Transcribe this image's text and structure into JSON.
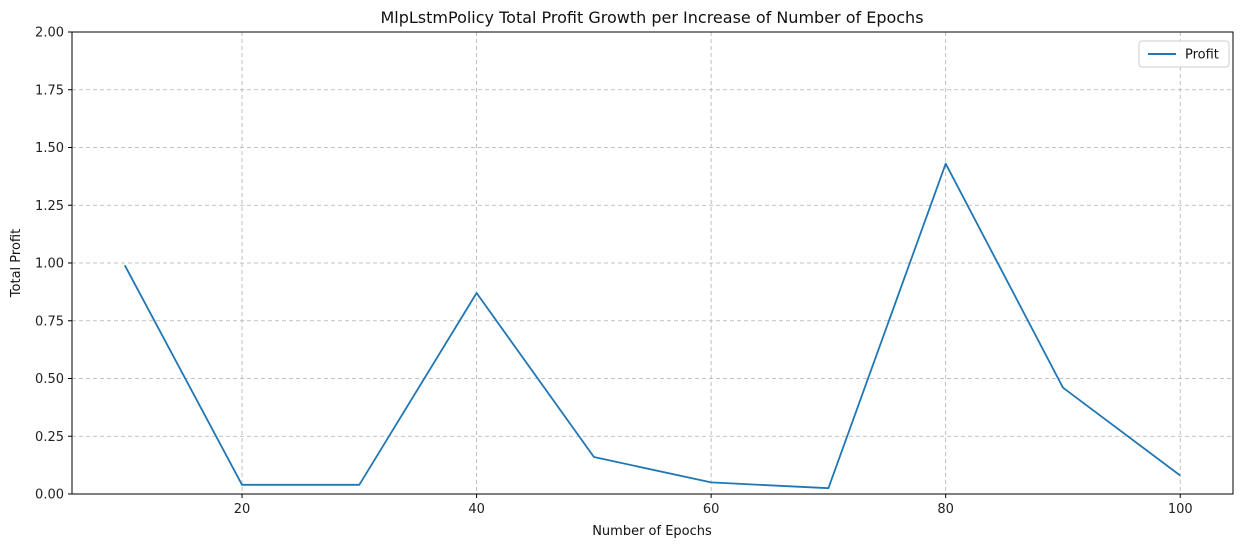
{
  "chart_data": {
    "type": "line",
    "title": "MlpLstmPolicy Total Profit Growth per Increase of Number of Epochs",
    "xlabel": "Number of Epochs",
    "ylabel": "Total Profit",
    "x": [
      10,
      20,
      30,
      40,
      50,
      60,
      70,
      80,
      90,
      100
    ],
    "series": [
      {
        "name": "Profit",
        "color": "#1f77b4",
        "values": [
          0.99,
          0.04,
          0.04,
          0.87,
          0.16,
          0.05,
          0.025,
          1.43,
          0.46,
          0.08
        ]
      }
    ],
    "xlim": [
      5.5,
      104.5
    ],
    "ylim": [
      0,
      2.0
    ],
    "xticks": [
      20,
      40,
      60,
      80,
      100
    ],
    "yticks": [
      0.0,
      0.25,
      0.5,
      0.75,
      1.0,
      1.25,
      1.5,
      1.75,
      2.0
    ],
    "xtick_labels": [
      "20",
      "40",
      "60",
      "80",
      "100"
    ],
    "ytick_labels": [
      "0.00",
      "0.25",
      "0.50",
      "0.75",
      "1.00",
      "1.25",
      "1.50",
      "1.75",
      "2.00"
    ],
    "grid": true,
    "legend_position": "top-right"
  }
}
